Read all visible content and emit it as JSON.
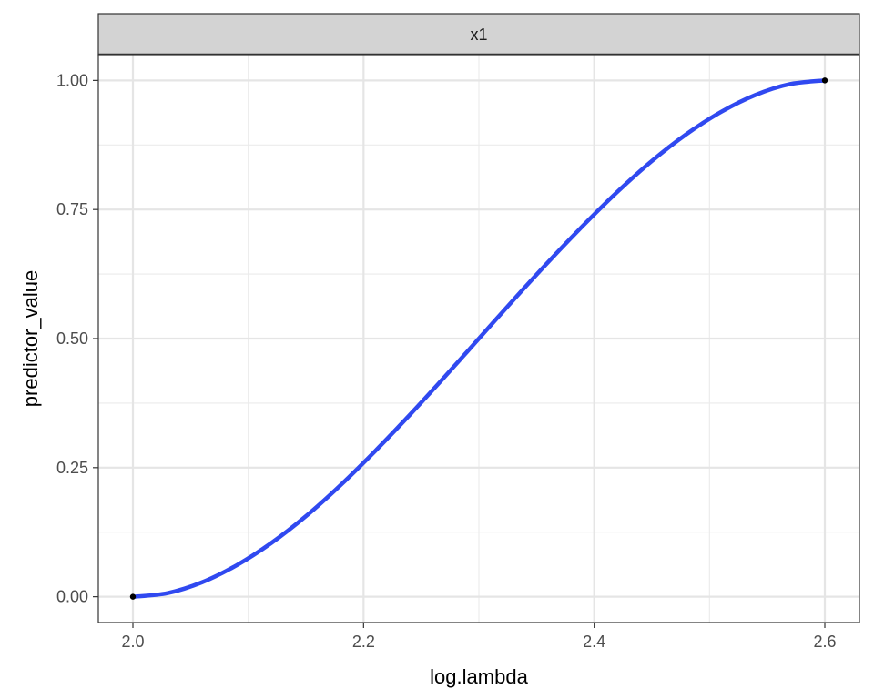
{
  "chart_data": {
    "type": "line",
    "facet_label": "x1",
    "xlabel": "log.lambda",
    "ylabel": "predictor_value",
    "xlim": [
      1.97,
      2.63
    ],
    "ylim": [
      -0.05,
      1.05
    ],
    "x_ticks": [
      2.0,
      2.2,
      2.4,
      2.6
    ],
    "x_tick_labels": [
      "2.0",
      "2.2",
      "2.4",
      "2.6"
    ],
    "y_ticks": [
      0.0,
      0.25,
      0.5,
      0.75,
      1.0
    ],
    "y_tick_labels": [
      "0.00",
      "0.25",
      "0.50",
      "0.75",
      "1.00"
    ],
    "grid": true,
    "series": [
      {
        "color": "#3049f0",
        "x": [
          2.0,
          2.03,
          2.06,
          2.09,
          2.12,
          2.15,
          2.18,
          2.21,
          2.24,
          2.27,
          2.3,
          2.33,
          2.36,
          2.39,
          2.42,
          2.45,
          2.48,
          2.51,
          2.54,
          2.57,
          2.6
        ],
        "y": [
          0.0,
          0.007,
          0.028,
          0.061,
          0.104,
          0.156,
          0.216,
          0.282,
          0.352,
          0.425,
          0.5,
          0.575,
          0.648,
          0.718,
          0.784,
          0.844,
          0.896,
          0.939,
          0.972,
          0.993,
          1.0
        ]
      }
    ],
    "points": [
      {
        "x": 2.0,
        "y": 0.0
      },
      {
        "x": 2.6,
        "y": 1.0
      }
    ]
  }
}
